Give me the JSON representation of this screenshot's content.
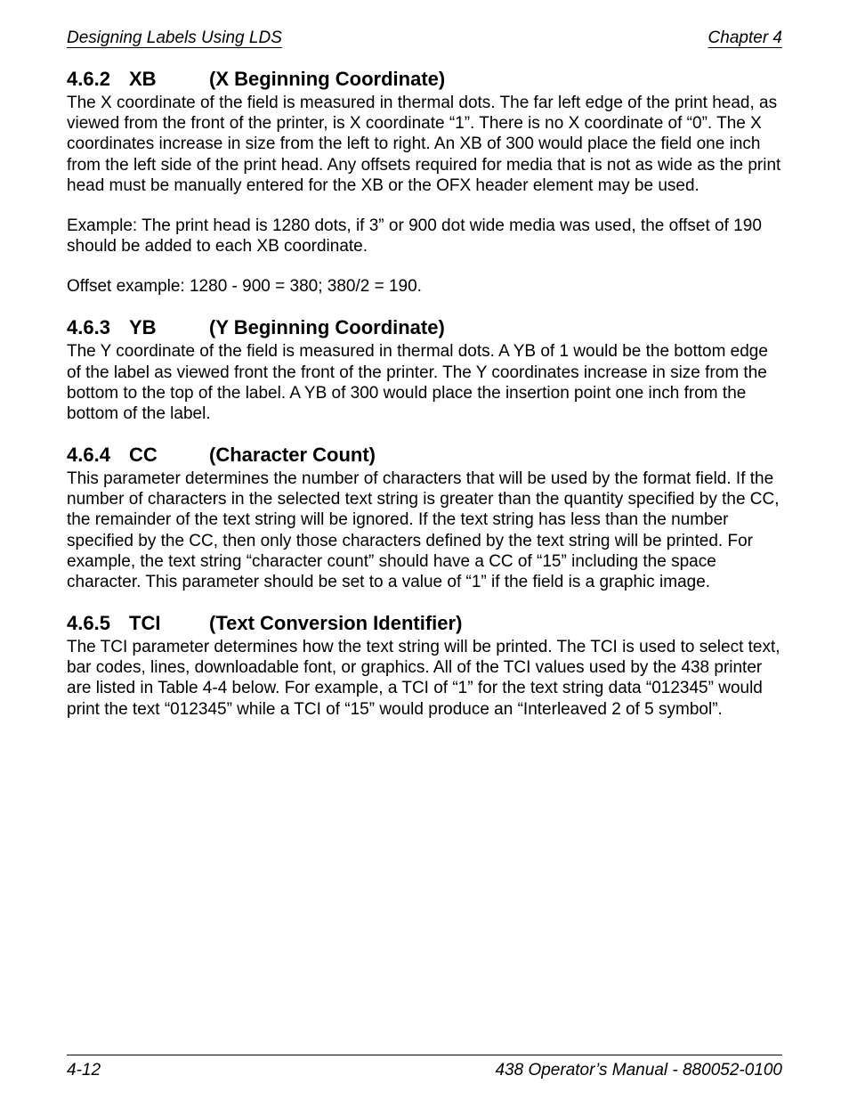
{
  "header": {
    "left": "Designing Labels Using LDS",
    "right": "Chapter 4"
  },
  "sections": {
    "s462": {
      "number": "4.6.2",
      "abbr": "XB",
      "title": "(X Beginning Coordinate)",
      "p1": "The X coordinate of the field is measured in thermal dots.  The far left edge of the print head, as viewed from the front of the printer, is X coordinate “1”.  There is no X coordinate of “0”.  The X coordinates increase in size from the left to right.  An XB of 300 would place the field one inch from the left side of the print head.  Any offsets required for media that is not as wide as the print head must be manually entered for the XB or the OFX header element may be used.",
      "p2": "Example: The print head is 1280 dots, if 3” or 900 dot wide media was used, the offset of 190 should be added to each XB coordinate.",
      "p3": "Offset example: 1280 - 900 = 380; 380/2 = 190."
    },
    "s463": {
      "number": "4.6.3",
      "abbr": "YB",
      "title": "(Y Beginning Coordinate)",
      "p1": "The Y coordinate of the field is measured in thermal dots.  A YB of 1 would be the bottom edge of the label as viewed front the front of the printer.  The Y coordinates increase in size from the bottom to the top of the label.  A YB of 300 would place the insertion point one inch from the bottom of the label."
    },
    "s464": {
      "number": "4.6.4",
      "abbr": "CC",
      "title": "(Character Count)",
      "p1": "This parameter determines the number of characters that will be used by the format field.  If the number of characters in the selected text string is greater than the quantity specified by the CC, the remainder of the text string will be ignored.  If the text string has less than the number specified by the CC, then only those characters defined by the text string will be printed.  For example, the text string “character count” should have a CC of “15” including the space character.  This parameter should be set to a value of “1” if the field is a graphic image."
    },
    "s465": {
      "number": "4.6.5",
      "abbr": "TCI",
      "title": "(Text Conversion Identifier)",
      "p1": "The TCI parameter determines how the text string will be printed.  The TCI is used to select text, bar codes, lines, downloadable font, or graphics.  All of the TCI values used by the 438 printer are listed in Table 4-4 below.  For example, a TCI of “1” for the text string data “012345” would print the text “012345” while a TCI of “15” would produce an “Interleaved 2 of 5 symbol”."
    }
  },
  "footer": {
    "left": "4-12",
    "right": "438 Operator’s Manual - 880052-0100"
  }
}
